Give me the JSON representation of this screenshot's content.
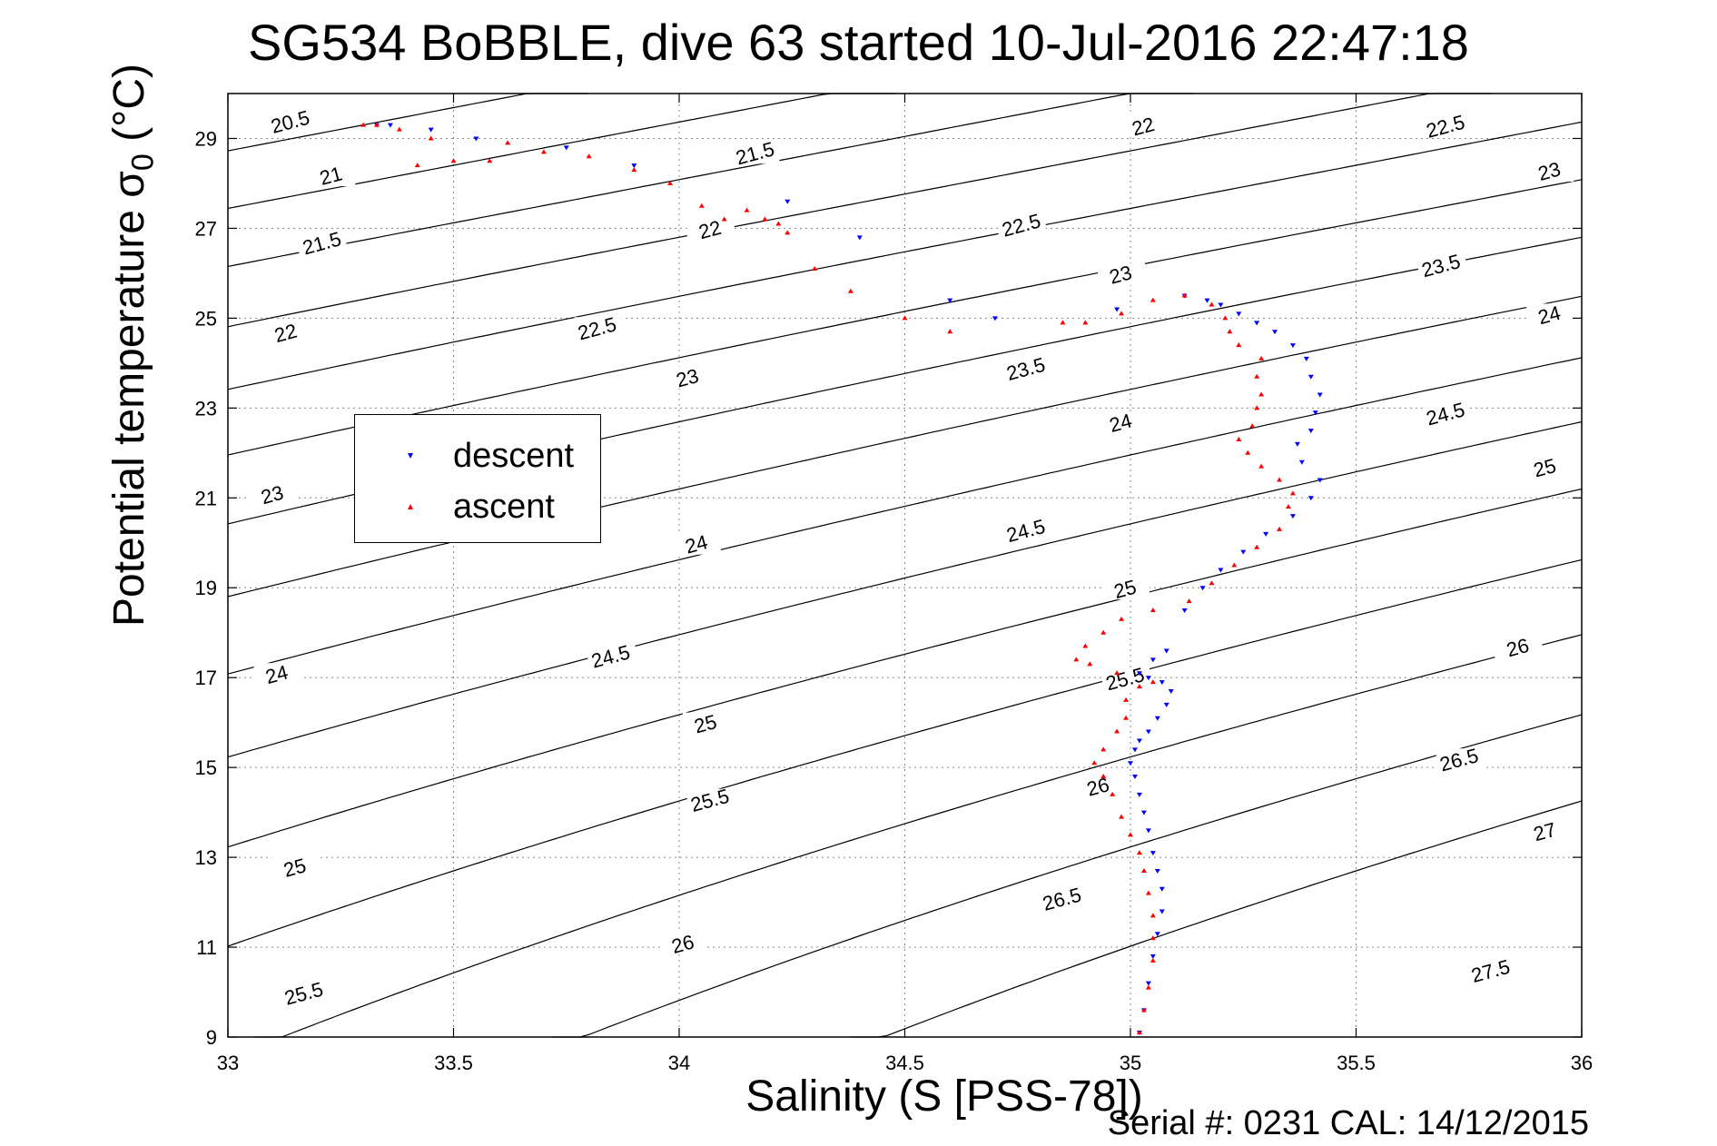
{
  "chart_data": {
    "type": "scatter",
    "title": "SG534 BoBBLE, dive 63 started 10-Jul-2016 22:47:18",
    "xlabel": "Salinity (S [PSS-78])",
    "ylabel_main": "Potential temperature ",
    "ylabel_symbol": "σ",
    "ylabel_sub": "0",
    "ylabel_unit": " (°C)",
    "xlim": [
      33,
      36
    ],
    "ylim": [
      9,
      30
    ],
    "x_ticks": [
      33,
      33.5,
      34,
      34.5,
      35,
      35.5,
      36
    ],
    "x_tick_labels": [
      "33",
      "33.5",
      "34",
      "34.5",
      "35",
      "35.5",
      "36"
    ],
    "y_ticks": [
      9,
      11,
      13,
      15,
      17,
      19,
      21,
      23,
      25,
      27,
      29
    ],
    "y_tick_labels": [
      "9",
      "11",
      "13",
      "15",
      "17",
      "19",
      "21",
      "23",
      "25",
      "27",
      "29"
    ],
    "grid": true,
    "legend_position": "middle-left",
    "legend": [
      {
        "label": "descent",
        "color": "#0000ff",
        "marker": "triangle-down"
      },
      {
        "label": "ascent",
        "color": "#ff0000",
        "marker": "triangle-up"
      }
    ],
    "isopycnals": {
      "levels": [
        20.5,
        21,
        21.5,
        22,
        22.5,
        23,
        23.5,
        24,
        24.5,
        25,
        25.5,
        26,
        26.5,
        27,
        27.5
      ],
      "labels": [
        {
          "text": "20.5",
          "s": 33.14,
          "t": 29.3
        },
        {
          "text": "21",
          "s": 33.23,
          "t": 28.1
        },
        {
          "text": "21.5",
          "s": 33.21,
          "t": 26.6
        },
        {
          "text": "22",
          "s": 33.13,
          "t": 24.6
        },
        {
          "text": "23",
          "s": 33.1,
          "t": 21.0
        },
        {
          "text": "24",
          "s": 33.11,
          "t": 17.0
        },
        {
          "text": "25",
          "s": 33.15,
          "t": 12.7
        },
        {
          "text": "25.5",
          "s": 33.17,
          "t": 9.9
        },
        {
          "text": "21.5",
          "s": 34.17,
          "t": 28.6
        },
        {
          "text": "22",
          "s": 34.07,
          "t": 26.9
        },
        {
          "text": "22.5",
          "s": 33.82,
          "t": 24.7
        },
        {
          "text": "23",
          "s": 34.02,
          "t": 23.6
        },
        {
          "text": "24",
          "s": 34.04,
          "t": 19.9
        },
        {
          "text": "24.5",
          "s": 33.85,
          "t": 17.4
        },
        {
          "text": "25",
          "s": 34.06,
          "t": 15.9
        },
        {
          "text": "25.5",
          "s": 34.07,
          "t": 14.2
        },
        {
          "text": "26",
          "s": 34.01,
          "t": 11.0
        },
        {
          "text": "22",
          "s": 35.03,
          "t": 29.2
        },
        {
          "text": "22.5",
          "s": 34.76,
          "t": 27.0
        },
        {
          "text": "23",
          "s": 34.98,
          "t": 25.9
        },
        {
          "text": "23.5",
          "s": 34.77,
          "t": 23.8
        },
        {
          "text": "24",
          "s": 34.98,
          "t": 22.6
        },
        {
          "text": "24.5",
          "s": 34.77,
          "t": 20.2
        },
        {
          "text": "25",
          "s": 34.99,
          "t": 18.9
        },
        {
          "text": "25.5",
          "s": 34.99,
          "t": 16.9
        },
        {
          "text": "26",
          "s": 34.93,
          "t": 14.5
        },
        {
          "text": "26.5",
          "s": 34.85,
          "t": 12.0
        },
        {
          "text": "22.5",
          "s": 35.7,
          "t": 29.2
        },
        {
          "text": "23",
          "s": 35.93,
          "t": 28.2
        },
        {
          "text": "23.5",
          "s": 35.69,
          "t": 26.1
        },
        {
          "text": "24",
          "s": 35.93,
          "t": 25.0
        },
        {
          "text": "24.5",
          "s": 35.7,
          "t": 22.8
        },
        {
          "text": "25",
          "s": 35.92,
          "t": 21.6
        },
        {
          "text": "26",
          "s": 35.86,
          "t": 17.6
        },
        {
          "text": "26.5",
          "s": 35.73,
          "t": 15.1
        },
        {
          "text": "27",
          "s": 35.92,
          "t": 13.5
        },
        {
          "text": "27.5",
          "s": 35.8,
          "t": 10.4
        }
      ]
    },
    "series": [
      {
        "name": "descent",
        "color": "#0000ff",
        "marker": "triangle-down",
        "points": [
          [
            35.02,
            9.1
          ],
          [
            35.03,
            9.6
          ],
          [
            35.04,
            10.2
          ],
          [
            35.05,
            10.8
          ],
          [
            35.06,
            11.3
          ],
          [
            35.07,
            11.8
          ],
          [
            35.07,
            12.3
          ],
          [
            35.06,
            12.7
          ],
          [
            35.05,
            13.1
          ],
          [
            35.04,
            13.6
          ],
          [
            35.03,
            14.0
          ],
          [
            35.02,
            14.4
          ],
          [
            35.01,
            14.8
          ],
          [
            35.0,
            15.1
          ],
          [
            35.01,
            15.4
          ],
          [
            35.02,
            15.6
          ],
          [
            35.04,
            15.8
          ],
          [
            35.06,
            16.1
          ],
          [
            35.08,
            16.4
          ],
          [
            35.09,
            16.7
          ],
          [
            35.07,
            16.9
          ],
          [
            35.04,
            17.0
          ],
          [
            35.02,
            17.1
          ],
          [
            35.05,
            17.4
          ],
          [
            35.08,
            17.6
          ],
          [
            35.12,
            18.5
          ],
          [
            35.16,
            19.0
          ],
          [
            35.2,
            19.4
          ],
          [
            35.25,
            19.8
          ],
          [
            35.3,
            20.2
          ],
          [
            35.36,
            20.6
          ],
          [
            35.4,
            21.0
          ],
          [
            35.42,
            21.4
          ],
          [
            35.38,
            21.8
          ],
          [
            35.37,
            22.2
          ],
          [
            35.4,
            22.5
          ],
          [
            35.41,
            22.9
          ],
          [
            35.42,
            23.3
          ],
          [
            35.4,
            23.7
          ],
          [
            35.39,
            24.1
          ],
          [
            35.36,
            24.4
          ],
          [
            35.32,
            24.7
          ],
          [
            35.28,
            24.9
          ],
          [
            35.24,
            25.1
          ],
          [
            35.2,
            25.3
          ],
          [
            35.17,
            25.4
          ],
          [
            35.12,
            25.5
          ],
          [
            34.97,
            25.2
          ],
          [
            34.7,
            25.0
          ],
          [
            34.6,
            25.4
          ],
          [
            34.4,
            26.8
          ],
          [
            34.24,
            27.6
          ],
          [
            33.9,
            28.4
          ],
          [
            33.75,
            28.8
          ],
          [
            33.55,
            29.0
          ],
          [
            33.45,
            29.2
          ],
          [
            33.36,
            29.3
          ],
          [
            33.33,
            29.3
          ]
        ]
      },
      {
        "name": "ascent",
        "color": "#ff0000",
        "marker": "triangle-up",
        "points": [
          [
            35.02,
            9.1
          ],
          [
            35.03,
            9.6
          ],
          [
            35.04,
            10.1
          ],
          [
            35.05,
            10.7
          ],
          [
            35.05,
            11.2
          ],
          [
            35.05,
            11.7
          ],
          [
            35.04,
            12.2
          ],
          [
            35.03,
            12.7
          ],
          [
            35.02,
            13.1
          ],
          [
            35.0,
            13.5
          ],
          [
            34.98,
            13.9
          ],
          [
            34.96,
            14.4
          ],
          [
            34.94,
            14.8
          ],
          [
            34.92,
            15.1
          ],
          [
            34.94,
            15.4
          ],
          [
            34.97,
            15.8
          ],
          [
            34.99,
            16.1
          ],
          [
            34.99,
            16.5
          ],
          [
            35.02,
            16.8
          ],
          [
            35.05,
            16.9
          ],
          [
            34.97,
            17.1
          ],
          [
            34.91,
            17.3
          ],
          [
            34.88,
            17.4
          ],
          [
            34.9,
            17.7
          ],
          [
            34.94,
            18.0
          ],
          [
            34.98,
            18.3
          ],
          [
            35.05,
            18.5
          ],
          [
            35.13,
            18.7
          ],
          [
            35.18,
            19.1
          ],
          [
            35.23,
            19.5
          ],
          [
            35.28,
            19.9
          ],
          [
            35.33,
            20.3
          ],
          [
            35.35,
            20.8
          ],
          [
            35.36,
            21.1
          ],
          [
            35.33,
            21.4
          ],
          [
            35.29,
            21.7
          ],
          [
            35.26,
            22.0
          ],
          [
            35.24,
            22.3
          ],
          [
            35.27,
            22.6
          ],
          [
            35.28,
            23.0
          ],
          [
            35.29,
            23.3
          ],
          [
            35.28,
            23.7
          ],
          [
            35.29,
            24.1
          ],
          [
            35.24,
            24.4
          ],
          [
            35.22,
            24.7
          ],
          [
            35.21,
            25.0
          ],
          [
            35.18,
            25.3
          ],
          [
            35.12,
            25.5
          ],
          [
            35.05,
            25.4
          ],
          [
            34.98,
            25.1
          ],
          [
            34.9,
            24.9
          ],
          [
            34.85,
            24.9
          ],
          [
            34.6,
            24.7
          ],
          [
            34.5,
            25.0
          ],
          [
            34.38,
            25.6
          ],
          [
            34.3,
            26.1
          ],
          [
            34.24,
            26.9
          ],
          [
            34.22,
            27.1
          ],
          [
            34.19,
            27.2
          ],
          [
            34.15,
            27.4
          ],
          [
            34.1,
            27.2
          ],
          [
            34.05,
            27.5
          ],
          [
            33.98,
            28.0
          ],
          [
            33.9,
            28.3
          ],
          [
            33.8,
            28.6
          ],
          [
            33.7,
            28.7
          ],
          [
            33.62,
            28.9
          ],
          [
            33.58,
            28.5
          ],
          [
            33.5,
            28.5
          ],
          [
            33.42,
            28.4
          ],
          [
            33.45,
            29.0
          ],
          [
            33.38,
            29.2
          ],
          [
            33.33,
            29.3
          ],
          [
            33.3,
            29.3
          ]
        ]
      }
    ],
    "footer": "Serial #: 0231  CAL: 14/12/2015"
  }
}
